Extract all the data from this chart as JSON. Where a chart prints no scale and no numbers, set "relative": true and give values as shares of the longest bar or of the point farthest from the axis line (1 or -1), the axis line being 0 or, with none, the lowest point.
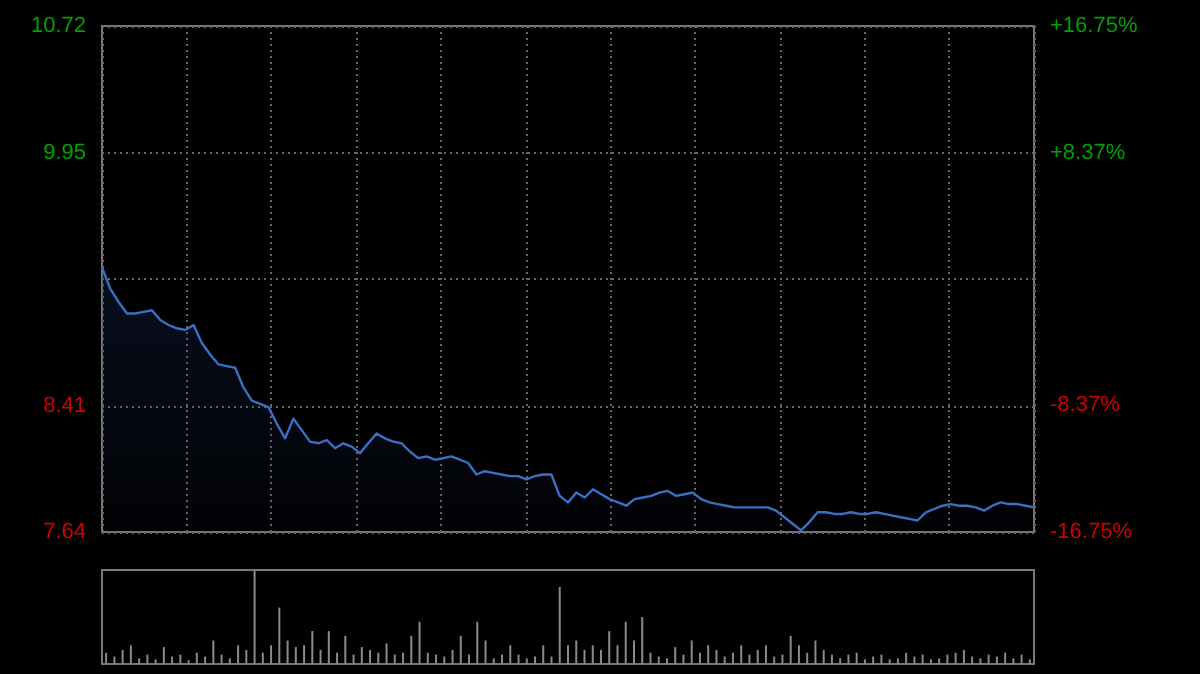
{
  "chart_data": [
    {
      "type": "area",
      "categories": [
        null,
        null,
        null,
        null,
        null,
        null,
        null,
        null,
        null,
        null,
        null,
        null,
        null,
        null,
        null,
        null,
        null,
        null,
        null,
        null,
        null,
        null,
        null,
        null,
        null,
        null,
        null,
        null,
        null,
        null,
        null,
        null,
        null,
        null,
        null,
        null,
        null,
        null,
        null,
        null,
        null,
        null,
        null,
        null,
        null,
        null,
        null,
        null,
        null,
        null,
        null,
        null,
        null,
        null,
        null,
        null,
        null,
        null,
        null,
        null,
        null,
        null,
        null,
        null,
        null,
        null,
        null,
        null,
        null,
        null,
        null,
        null,
        null,
        null,
        null,
        null,
        null,
        null,
        null,
        null,
        null,
        null,
        null,
        null,
        null,
        null,
        null,
        null,
        null,
        null,
        null,
        null,
        null,
        null,
        null,
        null,
        null,
        null,
        null,
        null,
        null,
        null,
        null,
        null,
        null,
        null,
        null,
        null,
        null,
        null,
        null,
        null,
        null
      ],
      "series": [
        {
          "color": "#3a6fc4",
          "values": [
            9.25,
            9.12,
            9.04,
            8.97,
            8.97,
            8.98,
            8.99,
            8.93,
            8.9,
            8.88,
            8.87,
            8.9,
            8.79,
            8.72,
            8.66,
            8.65,
            8.64,
            8.52,
            8.44,
            8.42,
            8.4,
            8.3,
            8.21,
            8.33,
            8.26,
            8.19,
            8.18,
            8.2,
            8.15,
            8.18,
            8.16,
            8.12,
            8.18,
            8.24,
            8.21,
            8.19,
            8.18,
            8.13,
            8.09,
            8.1,
            8.08,
            8.09,
            8.1,
            8.08,
            8.06,
            7.99,
            8.01,
            8.0,
            7.99,
            7.98,
            7.98,
            7.96,
            7.98,
            7.99,
            7.99,
            7.86,
            7.82,
            7.88,
            7.85,
            7.9,
            7.87,
            7.84,
            7.82,
            7.8,
            7.84,
            7.85,
            7.86,
            7.88,
            7.89,
            7.86,
            7.87,
            7.88,
            7.84,
            7.82,
            7.81,
            7.8,
            7.79,
            7.79,
            7.79,
            7.79,
            7.79,
            7.77,
            7.73,
            7.69,
            7.65,
            7.7,
            7.76,
            7.76,
            7.75,
            7.75,
            7.76,
            7.75,
            7.75,
            7.76,
            7.75,
            7.74,
            7.73,
            7.72,
            7.71,
            7.76,
            7.78,
            7.8,
            7.81,
            7.8,
            7.8,
            7.79,
            7.77,
            7.8,
            7.82,
            7.81,
            7.81,
            7.8,
            7.79
          ]
        }
      ],
      "ylim": [
        7.64,
        10.72
      ],
      "yticks": [
        7.64,
        8.41,
        {
          "value": 9.18,
          "label": null
        },
        9.95,
        10.72
      ],
      "y2lim": [
        -16.75,
        16.75
      ],
      "y2ticks": [
        {
          "value": -16.75,
          "label": "-16.75%"
        },
        {
          "value": -8.37,
          "label": "-8.37%"
        },
        {
          "value": 0,
          "label": null
        },
        {
          "value": 8.37,
          "label": "+8.37%"
        },
        {
          "value": 16.75,
          "label": "+16.75%"
        }
      ],
      "grid": true,
      "tick_labels": "y"
    },
    {
      "type": "bar",
      "relative": true,
      "categories": [
        null,
        null,
        null,
        null,
        null,
        null,
        null,
        null,
        null,
        null,
        null,
        null,
        null,
        null,
        null,
        null,
        null,
        null,
        null,
        null,
        null,
        null,
        null,
        null,
        null,
        null,
        null,
        null,
        null,
        null,
        null,
        null,
        null,
        null,
        null,
        null,
        null,
        null,
        null,
        null,
        null,
        null,
        null,
        null,
        null,
        null,
        null,
        null,
        null,
        null,
        null,
        null,
        null,
        null,
        null,
        null,
        null,
        null,
        null,
        null,
        null,
        null,
        null,
        null,
        null,
        null,
        null,
        null,
        null,
        null,
        null,
        null,
        null,
        null,
        null,
        null,
        null,
        null,
        null,
        null,
        null,
        null,
        null,
        null,
        null,
        null,
        null,
        null,
        null,
        null,
        null,
        null,
        null,
        null,
        null,
        null,
        null,
        null,
        null,
        null,
        null,
        null,
        null,
        null,
        null,
        null,
        null,
        null,
        null,
        null,
        null,
        null,
        null
      ],
      "series": [
        {
          "color": "#8a8a8a",
          "values": [
            0.12,
            0.08,
            0.15,
            0.2,
            0.06,
            0.1,
            0.05,
            0.18,
            0.08,
            0.1,
            0.04,
            0.12,
            0.08,
            0.25,
            0.1,
            0.06,
            0.2,
            0.15,
            1,
            0.12,
            0.2,
            0.6,
            0.25,
            0.18,
            0.2,
            0.35,
            0.15,
            0.35,
            0.12,
            0.3,
            0.1,
            0.18,
            0.15,
            0.12,
            0.22,
            0.1,
            0.12,
            0.3,
            0.45,
            0.12,
            0.1,
            0.08,
            0.15,
            0.3,
            0.1,
            0.45,
            0.25,
            0.06,
            0.1,
            0.2,
            0.1,
            0.06,
            0.08,
            0.2,
            0.08,
            0.82,
            0.2,
            0.25,
            0.15,
            0.2,
            0.15,
            0.35,
            0.2,
            0.45,
            0.25,
            0.5,
            0.12,
            0.08,
            0.06,
            0.18,
            0.1,
            0.25,
            0.12,
            0.2,
            0.15,
            0.08,
            0.12,
            0.2,
            0.1,
            0.15,
            0.2,
            0.08,
            0.1,
            0.3,
            0.2,
            0.12,
            0.25,
            0.15,
            0.1,
            0.06,
            0.1,
            0.12,
            0.05,
            0.08,
            0.1,
            0.05,
            0.06,
            0.12,
            0.08,
            0.1,
            0.05,
            0.06,
            0.1,
            0.12,
            0.15,
            0.08,
            0.06,
            0.1,
            0.08,
            0.12,
            0.06,
            0.1,
            0.05
          ]
        }
      ],
      "tick_labels": false
    }
  ]
}
